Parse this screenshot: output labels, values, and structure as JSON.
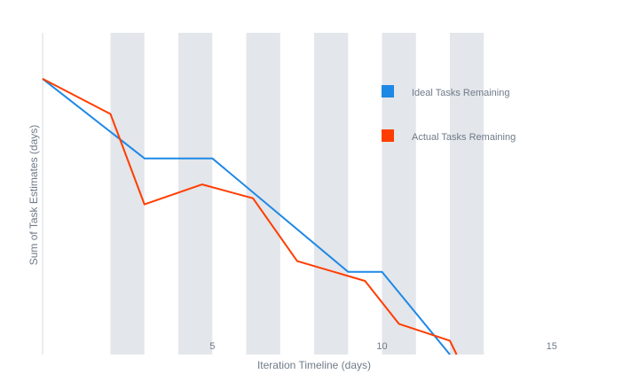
{
  "chart_data": {
    "type": "line",
    "title": "",
    "xlabel": "Iteration Timeline (days)",
    "ylabel": "Sum of Task Estimates (days)",
    "xlim": [
      0,
      16
    ],
    "ylim": [
      0,
      21
    ],
    "x_tick_labels": [
      {
        "x": 5,
        "label": "5"
      },
      {
        "x": 10,
        "label": "10"
      },
      {
        "x": 15,
        "label": "15"
      }
    ],
    "shaded_bands": [
      [
        2,
        3
      ],
      [
        4,
        5
      ],
      [
        6,
        7
      ],
      [
        8,
        9
      ],
      [
        10,
        11
      ],
      [
        12,
        13
      ]
    ],
    "legend": "right",
    "series": [
      {
        "name": "Ideal Tasks Remaining",
        "color": "#1e88e5",
        "x": [
          0,
          3,
          5,
          9,
          10,
          12
        ],
        "y": [
          18,
          12.8,
          12.8,
          5.4,
          5.4,
          0
        ]
      },
      {
        "name": "Actual Tasks Remaining",
        "color": "#ff3d00",
        "x": [
          0,
          2,
          3,
          4.7,
          6.2,
          7.5,
          9.5,
          10.5,
          12,
          12.2
        ],
        "y": [
          18,
          15.7,
          9.8,
          11.1,
          10.2,
          6.1,
          4.8,
          2.0,
          0.9,
          0
        ]
      }
    ]
  }
}
